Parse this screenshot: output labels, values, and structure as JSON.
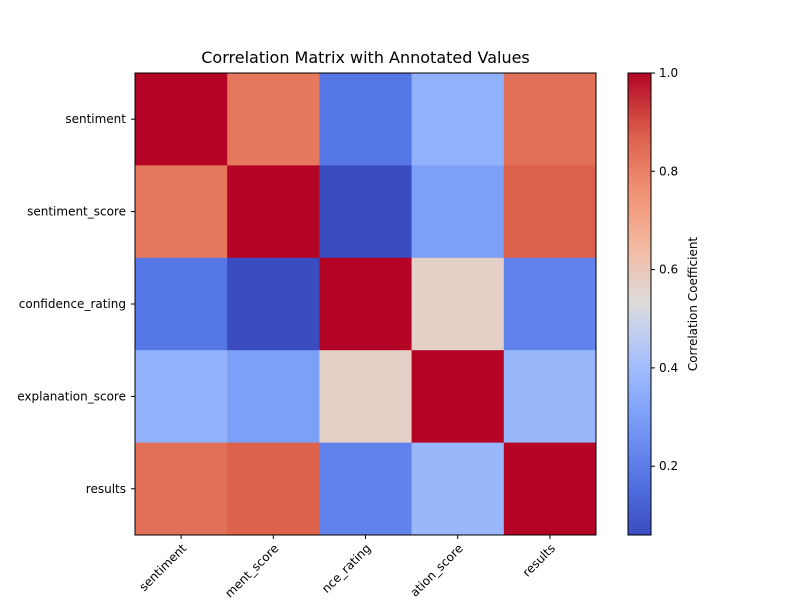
{
  "chart_data": {
    "type": "heatmap",
    "title": "Correlation Matrix with Annotated Values",
    "rows": [
      "sentiment",
      "sentiment_score",
      "confidence_rating",
      "explanation_score",
      "results"
    ],
    "columns": [
      "sentiment",
      "sentiment_score",
      "confidence_rating",
      "explanation_score",
      "results"
    ],
    "x_tick_labels": [
      "sentiment",
      "ment_score",
      "nce_rating",
      "ation_score",
      "results"
    ],
    "y_tick_labels": [
      "sentiment",
      "sentiment_score",
      "confidence_rating",
      "explanation_score",
      "results"
    ],
    "values": [
      [
        1.0,
        0.82,
        0.18,
        0.36,
        0.84
      ],
      [
        0.82,
        1.0,
        0.06,
        0.3,
        0.87
      ],
      [
        0.18,
        0.06,
        1.0,
        0.57,
        0.22
      ],
      [
        0.36,
        0.3,
        0.57,
        1.0,
        0.38
      ],
      [
        0.84,
        0.87,
        0.22,
        0.38,
        1.0
      ]
    ],
    "colormap": "coolwarm",
    "vmin": 0.06,
    "vmax": 1.0,
    "colorbar": {
      "label": "Correlation Coefficient",
      "ticks": [
        0.2,
        0.4,
        0.6,
        0.8,
        1.0
      ],
      "tick_labels": [
        "0.2",
        "0.4",
        "0.6",
        "0.8",
        "1.0"
      ]
    },
    "colors": {
      "low": "#3b4cc0",
      "mid": "#dddcdc",
      "high": "#b40426"
    }
  }
}
